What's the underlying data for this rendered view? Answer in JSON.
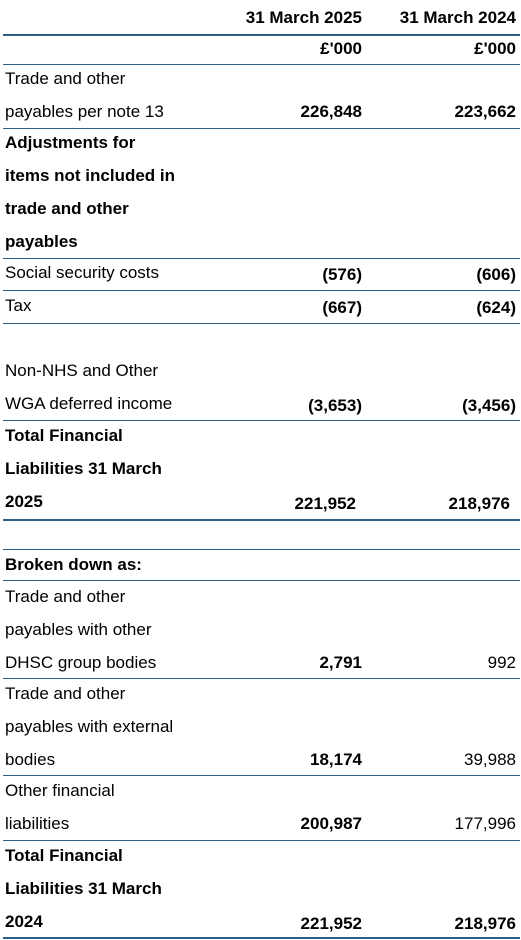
{
  "header": {
    "col1": "31 March 2025",
    "col2": "31 March 2024",
    "unit1": "£'000",
    "unit2": "£'000"
  },
  "rows": {
    "trade_payables": {
      "label1": "Trade and other",
      "label2": "payables per note 13",
      "v2025": "226,848",
      "v2024": "223,662"
    },
    "adjustments": {
      "label1": "Adjustments for",
      "label2": "items not included in",
      "label3": "trade and other",
      "label4": "payables"
    },
    "social_security": {
      "label": "Social security costs",
      "v2025": "(576)",
      "v2024": "(606)"
    },
    "tax": {
      "label": "Tax",
      "v2025": "(667)",
      "v2024": "(624)"
    },
    "deferred_income": {
      "label1": "Non-NHS and Other",
      "label2": "WGA deferred income",
      "v2025": "(3,653)",
      "v2024": "(3,456)"
    },
    "total1": {
      "label1": "Total Financial",
      "label2": "Liabilities 31 March",
      "label3": "2025",
      "v2025": "221,952",
      "v2024": "218,976"
    },
    "broken_down": {
      "label": "Broken down as:"
    },
    "dhsc": {
      "label1": "Trade and other",
      "label2": "payables with other",
      "label3": "DHSC group bodies",
      "v2025": "2,791",
      "v2024": "992"
    },
    "external": {
      "label1": "Trade and other",
      "label2": "payables with external",
      "label3": "bodies",
      "v2025": "18,174",
      "v2024": "39,988"
    },
    "other_fin": {
      "label1": "Other financial",
      "label2": "liabilities",
      "v2025": "200,987",
      "v2024": "177,996"
    },
    "total2": {
      "label1": "Total Financial",
      "label2": "Liabilities 31 March",
      "label3": "2024",
      "v2025": "221,952",
      "v2024": "218,976"
    }
  }
}
